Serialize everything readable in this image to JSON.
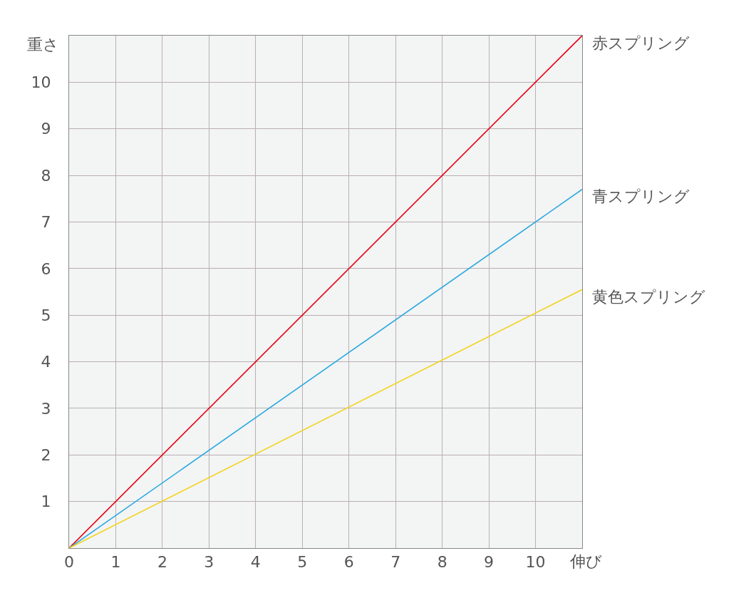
{
  "chart_data": {
    "type": "line",
    "xlabel": "伸び",
    "ylabel": "重さ",
    "x": [
      0,
      11
    ],
    "series": [
      {
        "name": "赤スプリング",
        "color": "#e60012",
        "values": [
          0,
          11
        ]
      },
      {
        "name": "青スプリング",
        "color": "#29a9e1",
        "values": [
          0,
          7.7
        ]
      },
      {
        "name": "黄色スプリング",
        "color": "#f2d31b",
        "values": [
          0,
          5.55
        ]
      }
    ],
    "xlim": [
      0,
      11
    ],
    "ylim": [
      0,
      11
    ],
    "xticks": [
      0,
      1,
      2,
      3,
      4,
      5,
      6,
      7,
      8,
      9,
      10
    ],
    "yticks": [
      1,
      2,
      3,
      4,
      5,
      6,
      7,
      8,
      9,
      10
    ],
    "grid": true
  }
}
